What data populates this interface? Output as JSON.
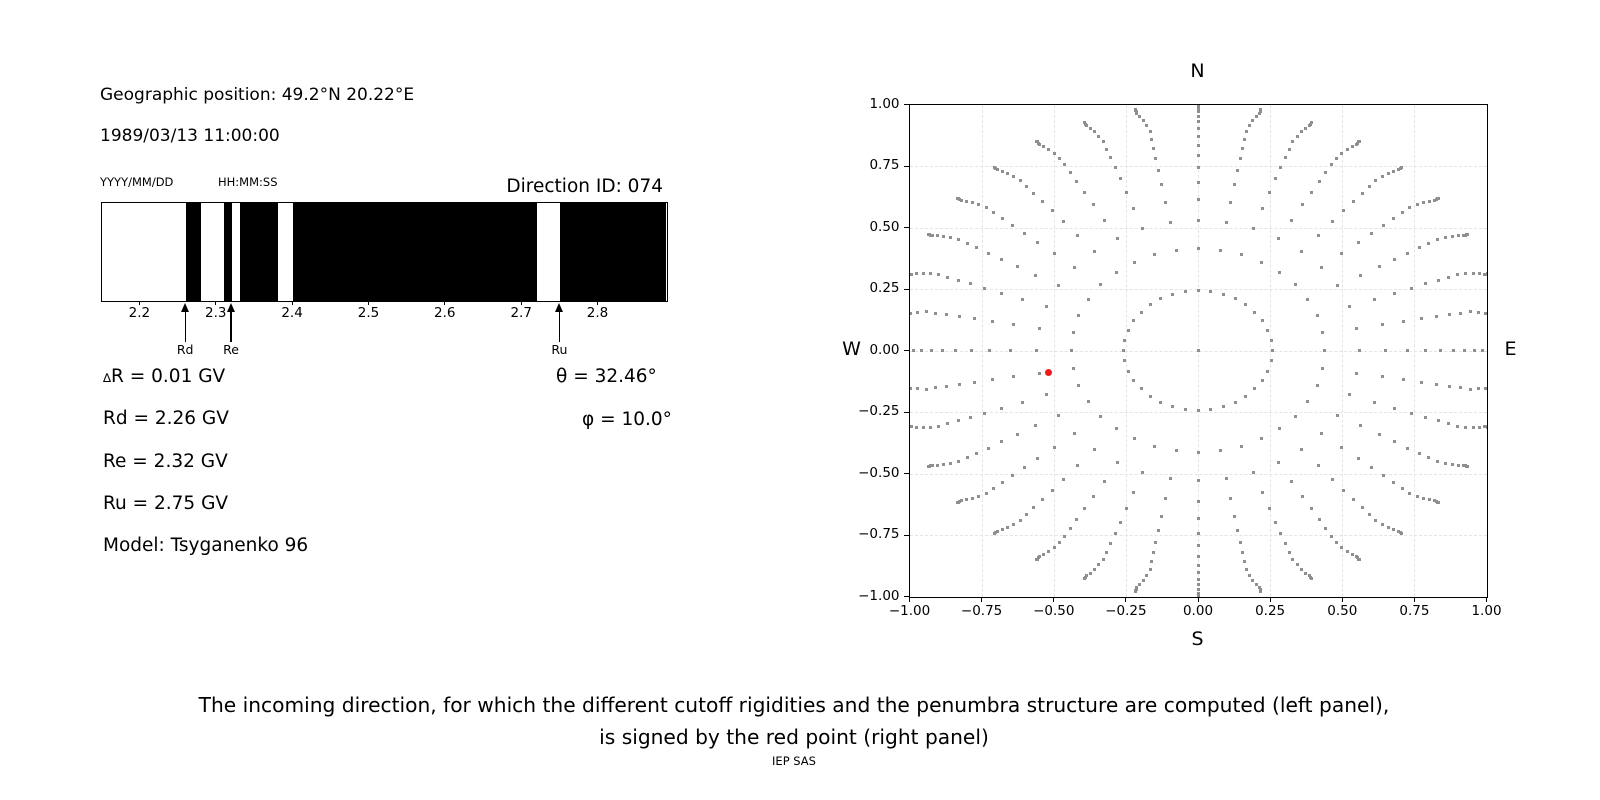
{
  "colors": {
    "black": "#000000",
    "dot_gray": "#8f8f8f",
    "red": "#ee1c1c",
    "grid": "#e4e4e4"
  },
  "header": {
    "geo_position": "Geographic position: 49.2°N 20.22°E",
    "datetime": "1989/03/13 11:00:00",
    "date_format_label": "YYYY/MM/DD",
    "time_format_label": "HH:MM:SS",
    "direction_id": "Direction ID: 074"
  },
  "left_info": {
    "delta_symbol": "∆",
    "delta_rest": "R = 0.01 GV",
    "rd": "Rd = 2.26 GV",
    "re": "Re = 2.32 GV",
    "ru": "Ru = 2.75 GV",
    "model": "Model: Tsyganenko 96",
    "theta": "θ = 32.46°",
    "phi": "φ = 10.0°"
  },
  "caption": {
    "line1": "The incoming direction, for which the different cutoff rigidities and the penumbra structure are computed (left panel),",
    "line2": "is signed by the red point (right panel)",
    "credit": "IEP SAS"
  },
  "chart_data": [
    {
      "id": "penumbra",
      "type": "bar",
      "xlim": [
        2.149,
        2.889
      ],
      "xticks": [
        2.2,
        2.3,
        2.4,
        2.5,
        2.6,
        2.7,
        2.8
      ],
      "black_bands": [
        [
          2.26,
          2.28
        ],
        [
          2.31,
          2.32
        ],
        [
          2.33,
          2.38
        ],
        [
          2.4,
          2.72
        ],
        [
          2.75,
          2.889
        ]
      ],
      "arrows": [
        {
          "label": "Rd",
          "R": 2.26
        },
        {
          "label": "Re",
          "R": 2.32
        },
        {
          "label": "Ru",
          "R": 2.75
        }
      ],
      "bar_color": "#000000",
      "background": "#ffffff"
    },
    {
      "id": "direction-grid",
      "type": "scatter",
      "xlim": [
        -1.0,
        1.0
      ],
      "ylim": [
        -1.0,
        1.0
      ],
      "xticks": [
        -1.0,
        -0.75,
        -0.5,
        -0.25,
        0.0,
        0.25,
        0.5,
        0.75,
        1.0
      ],
      "yticks": [
        -1.0,
        -0.75,
        -0.5,
        -0.25,
        0.0,
        0.25,
        0.5,
        0.75,
        1.0
      ],
      "grid": true,
      "legend": false,
      "compass": {
        "n": "N",
        "e": "E",
        "s": "S",
        "w": "W"
      },
      "azimuth_step_deg": 10,
      "spoke_radii": [
        0.2431,
        0.4146,
        0.5268,
        0.6126,
        0.6834,
        0.7424,
        0.7924,
        0.8352,
        0.8718,
        0.9032,
        0.9298,
        0.9523,
        0.9708,
        0.9857,
        0.9915,
        0.9975,
        1.0
      ],
      "center_dot": [
        0,
        0
      ],
      "x_stretch": 1.06,
      "tip_hook_deg": [
        0,
        0,
        0,
        0,
        0,
        0,
        0,
        0,
        0,
        0,
        0.4,
        0.8,
        1.3,
        1.8,
        1.8,
        1.8,
        1.8
      ],
      "red_point": {
        "x": -0.52,
        "y": -0.09
      }
    }
  ]
}
